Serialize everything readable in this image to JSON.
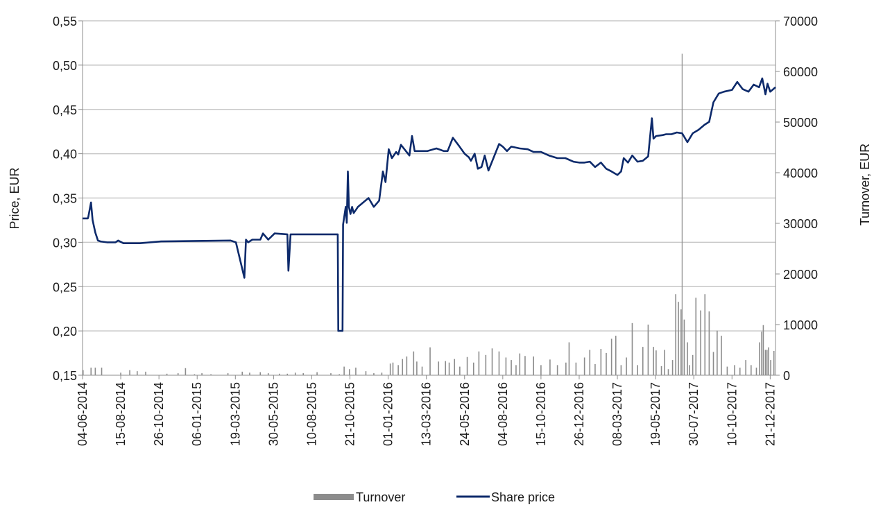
{
  "chart_data": {
    "type": "line",
    "ylabel": "Price, EUR",
    "y2label": "Turnover, EUR",
    "ylim": [
      0.15,
      0.55
    ],
    "y2lim": [
      0,
      70000
    ],
    "xlim": [
      "2014-06-04",
      "2017-12-31"
    ],
    "grid": "horizontal",
    "legend_position": "bottom",
    "y_ticks": [
      "0,15",
      "0,20",
      "0,25",
      "0,30",
      "0,35",
      "0,40",
      "0,45",
      "0,50",
      "0,55"
    ],
    "y2_ticks": [
      "0",
      "10000",
      "20000",
      "30000",
      "40000",
      "50000",
      "60000",
      "70000"
    ],
    "x_ticks": [
      {
        "date": "2014-06-04",
        "label": "04-06-2014"
      },
      {
        "date": "2014-08-15",
        "label": "15-08-2014"
      },
      {
        "date": "2014-10-26",
        "label": "26-10-2014"
      },
      {
        "date": "2015-01-06",
        "label": "06-01-2015"
      },
      {
        "date": "2015-03-19",
        "label": "19-03-2015"
      },
      {
        "date": "2015-05-30",
        "label": "30-05-2015"
      },
      {
        "date": "2015-08-10",
        "label": "10-08-2015"
      },
      {
        "date": "2015-10-21",
        "label": "21-10-2015"
      },
      {
        "date": "2016-01-01",
        "label": "01-01-2016"
      },
      {
        "date": "2016-03-13",
        "label": "13-03-2016"
      },
      {
        "date": "2016-05-24",
        "label": "24-05-2016"
      },
      {
        "date": "2016-08-04",
        "label": "04-08-2016"
      },
      {
        "date": "2016-10-15",
        "label": "15-10-2016"
      },
      {
        "date": "2016-12-26",
        "label": "26-12-2016"
      },
      {
        "date": "2017-03-08",
        "label": "08-03-2017"
      },
      {
        "date": "2017-05-19",
        "label": "19-05-2017"
      },
      {
        "date": "2017-07-30",
        "label": "30-07-2017"
      },
      {
        "date": "2017-10-10",
        "label": "10-10-2017"
      },
      {
        "date": "2017-12-21",
        "label": "21-12-2017"
      }
    ],
    "series": [
      {
        "name": "Share price",
        "axis": "left",
        "kind": "line",
        "color": "#0d2a6b",
        "x": [
          "2014-06-04",
          "2014-06-14",
          "2014-06-15",
          "2014-06-20",
          "2014-06-23",
          "2014-06-28",
          "2014-07-03",
          "2014-07-08",
          "2014-07-20",
          "2014-08-05",
          "2014-08-10",
          "2014-08-20",
          "2014-09-01",
          "2014-09-20",
          "2014-10-30",
          "2015-03-10",
          "2015-03-20",
          "2015-04-05",
          "2015-04-08",
          "2015-04-12",
          "2015-04-20",
          "2015-05-05",
          "2015-05-10",
          "2015-05-20",
          "2015-06-01",
          "2015-06-25",
          "2015-06-27",
          "2015-07-01",
          "2015-09-28",
          "2015-09-29",
          "2015-10-07",
          "2015-10-08",
          "2015-10-13",
          "2015-10-15",
          "2015-10-17",
          "2015-10-19",
          "2015-10-22",
          "2015-10-25",
          "2015-10-28",
          "2015-11-05",
          "2015-11-25",
          "2015-12-05",
          "2015-12-15",
          "2015-12-22",
          "2015-12-27",
          "2016-01-02",
          "2016-01-08",
          "2016-01-16",
          "2016-01-20",
          "2016-01-25",
          "2016-02-10",
          "2016-02-15",
          "2016-02-20",
          "2016-03-15",
          "2016-04-01",
          "2016-04-15",
          "2016-04-22",
          "2016-05-02",
          "2016-05-12",
          "2016-05-24",
          "2016-06-01",
          "2016-06-05",
          "2016-06-12",
          "2016-06-18",
          "2016-06-25",
          "2016-07-01",
          "2016-07-08",
          "2016-07-20",
          "2016-07-28",
          "2016-08-04",
          "2016-08-12",
          "2016-08-20",
          "2016-09-05",
          "2016-09-20",
          "2016-10-01",
          "2016-10-15",
          "2016-10-30",
          "2016-11-15",
          "2016-11-30",
          "2016-12-15",
          "2016-12-26",
          "2017-01-05",
          "2017-01-15",
          "2017-01-25",
          "2017-02-05",
          "2017-02-15",
          "2017-02-25",
          "2017-03-08",
          "2017-03-15",
          "2017-03-20",
          "2017-03-28",
          "2017-04-05",
          "2017-04-15",
          "2017-04-25",
          "2017-05-05",
          "2017-05-12",
          "2017-05-15",
          "2017-05-20",
          "2017-06-01",
          "2017-06-08",
          "2017-06-18",
          "2017-06-28",
          "2017-07-08",
          "2017-07-18",
          "2017-07-28",
          "2017-08-08",
          "2017-08-18",
          "2017-08-20",
          "2017-08-28",
          "2017-09-05",
          "2017-09-15",
          "2017-09-25",
          "2017-10-10",
          "2017-10-20",
          "2017-10-30",
          "2017-11-10",
          "2017-11-20",
          "2017-11-30",
          "2017-12-06",
          "2017-12-12",
          "2017-12-16",
          "2017-12-21",
          "2017-12-31"
        ],
        "y": [
          0.327,
          0.327,
          0.329,
          0.345,
          0.325,
          0.311,
          0.302,
          0.301,
          0.3,
          0.3,
          0.302,
          0.299,
          0.299,
          0.299,
          0.301,
          0.302,
          0.3,
          0.26,
          0.303,
          0.3,
          0.303,
          0.303,
          0.31,
          0.303,
          0.31,
          0.309,
          0.268,
          0.309,
          0.309,
          0.2,
          0.2,
          0.32,
          0.34,
          0.322,
          0.38,
          0.34,
          0.332,
          0.34,
          0.333,
          0.34,
          0.35,
          0.34,
          0.347,
          0.38,
          0.368,
          0.405,
          0.395,
          0.402,
          0.399,
          0.41,
          0.398,
          0.42,
          0.403,
          0.403,
          0.406,
          0.403,
          0.403,
          0.418,
          0.41,
          0.4,
          0.396,
          0.392,
          0.4,
          0.383,
          0.385,
          0.398,
          0.381,
          0.399,
          0.411,
          0.408,
          0.403,
          0.408,
          0.406,
          0.405,
          0.402,
          0.402,
          0.398,
          0.395,
          0.395,
          0.391,
          0.39,
          0.39,
          0.391,
          0.385,
          0.39,
          0.383,
          0.38,
          0.376,
          0.38,
          0.395,
          0.39,
          0.398,
          0.391,
          0.392,
          0.397,
          0.44,
          0.417,
          0.42,
          0.421,
          0.422,
          0.422,
          0.424,
          0.423,
          0.413,
          0.423,
          0.427,
          0.432,
          0.433,
          0.436,
          0.458,
          0.468,
          0.47,
          0.472,
          0.481,
          0.473,
          0.47,
          0.478,
          0.475,
          0.485,
          0.467,
          0.479,
          0.47,
          0.475
        ]
      },
      {
        "name": "Turnover",
        "axis": "right",
        "kind": "bar",
        "color": "#8c8c8c",
        "x": [
          "2014-06-05",
          "2014-06-20",
          "2014-06-28",
          "2014-07-10",
          "2014-08-15",
          "2014-09-01",
          "2014-09-15",
          "2014-10-01",
          "2014-11-10",
          "2014-12-01",
          "2014-12-15",
          "2015-01-01",
          "2015-01-15",
          "2015-02-01",
          "2015-03-05",
          "2015-04-01",
          "2015-04-15",
          "2015-05-05",
          "2015-05-20",
          "2015-06-10",
          "2015-06-25",
          "2015-07-10",
          "2015-07-25",
          "2015-08-20",
          "2015-09-15",
          "2015-10-01",
          "2015-10-10",
          "2015-10-20",
          "2015-11-01",
          "2015-11-20",
          "2015-12-05",
          "2015-12-20",
          "2016-01-05",
          "2016-01-10",
          "2016-01-20",
          "2016-01-28",
          "2016-02-05",
          "2016-02-18",
          "2016-02-24",
          "2016-03-05",
          "2016-03-20",
          "2016-04-05",
          "2016-04-18",
          "2016-04-25",
          "2016-05-05",
          "2016-05-15",
          "2016-05-29",
          "2016-06-10",
          "2016-06-20",
          "2016-07-03",
          "2016-07-15",
          "2016-07-28",
          "2016-08-10",
          "2016-08-20",
          "2016-08-29",
          "2016-09-05",
          "2016-09-15",
          "2016-10-01",
          "2016-10-15",
          "2016-11-01",
          "2016-11-15",
          "2016-12-01",
          "2016-12-07",
          "2016-12-20",
          "2017-01-05",
          "2017-01-15",
          "2017-01-25",
          "2017-02-05",
          "2017-02-15",
          "2017-02-25",
          "2017-03-05",
          "2017-03-15",
          "2017-03-25",
          "2017-04-05",
          "2017-04-15",
          "2017-04-25",
          "2017-05-05",
          "2017-05-15",
          "2017-05-20",
          "2017-05-30",
          "2017-06-05",
          "2017-06-12",
          "2017-06-20",
          "2017-06-26",
          "2017-07-01",
          "2017-07-06",
          "2017-07-12",
          "2017-07-18",
          "2017-07-22",
          "2017-07-28",
          "2017-08-03",
          "2017-08-12",
          "2017-08-20",
          "2017-08-28",
          "2017-09-05",
          "2017-09-12",
          "2017-09-20",
          "2017-10-01",
          "2017-10-15",
          "2017-10-25",
          "2017-11-05",
          "2017-11-15",
          "2017-11-25",
          "2017-12-01",
          "2017-12-05",
          "2017-12-08",
          "2017-12-12",
          "2017-12-15",
          "2017-12-18",
          "2017-12-22",
          "2017-12-28"
        ],
        "y": [
          1000,
          1500,
          1500,
          1500,
          500,
          1000,
          800,
          700,
          300,
          400,
          1400,
          200,
          400,
          200,
          400,
          700,
          500,
          600,
          400,
          300,
          300,
          500,
          400,
          600,
          400,
          200,
          1700,
          1200,
          1500,
          800,
          400,
          500,
          2300,
          2500,
          2000,
          3200,
          3700,
          4700,
          2700,
          1700,
          5500,
          2700,
          2800,
          2500,
          3200,
          1700,
          3600,
          2500,
          4700,
          4000,
          5300,
          4700,
          3500,
          3000,
          2000,
          4300,
          3800,
          3700,
          2000,
          3100,
          2000,
          2500,
          6500,
          2500,
          3500,
          5000,
          2200,
          5200,
          4400,
          7200,
          7800,
          2000,
          3500,
          10300,
          2000,
          5600,
          10000,
          5600,
          4900,
          1800,
          5000,
          1200,
          3000,
          16000,
          14500,
          13000,
          11000,
          6500,
          2000,
          4000,
          15300,
          12800,
          16000,
          12600,
          4600,
          8800,
          7800,
          1700,
          2000,
          1500,
          3000,
          2000,
          1500,
          6500,
          8600,
          9900,
          5000,
          5000,
          5500,
          3000,
          4800
        ]
      }
    ],
    "annotations": [
      {
        "kind": "spike",
        "series": "Turnover",
        "x": "2017-07-08",
        "y": 63500
      }
    ]
  },
  "legend": {
    "turnover_label": "Turnover",
    "price_label": "Share price"
  }
}
